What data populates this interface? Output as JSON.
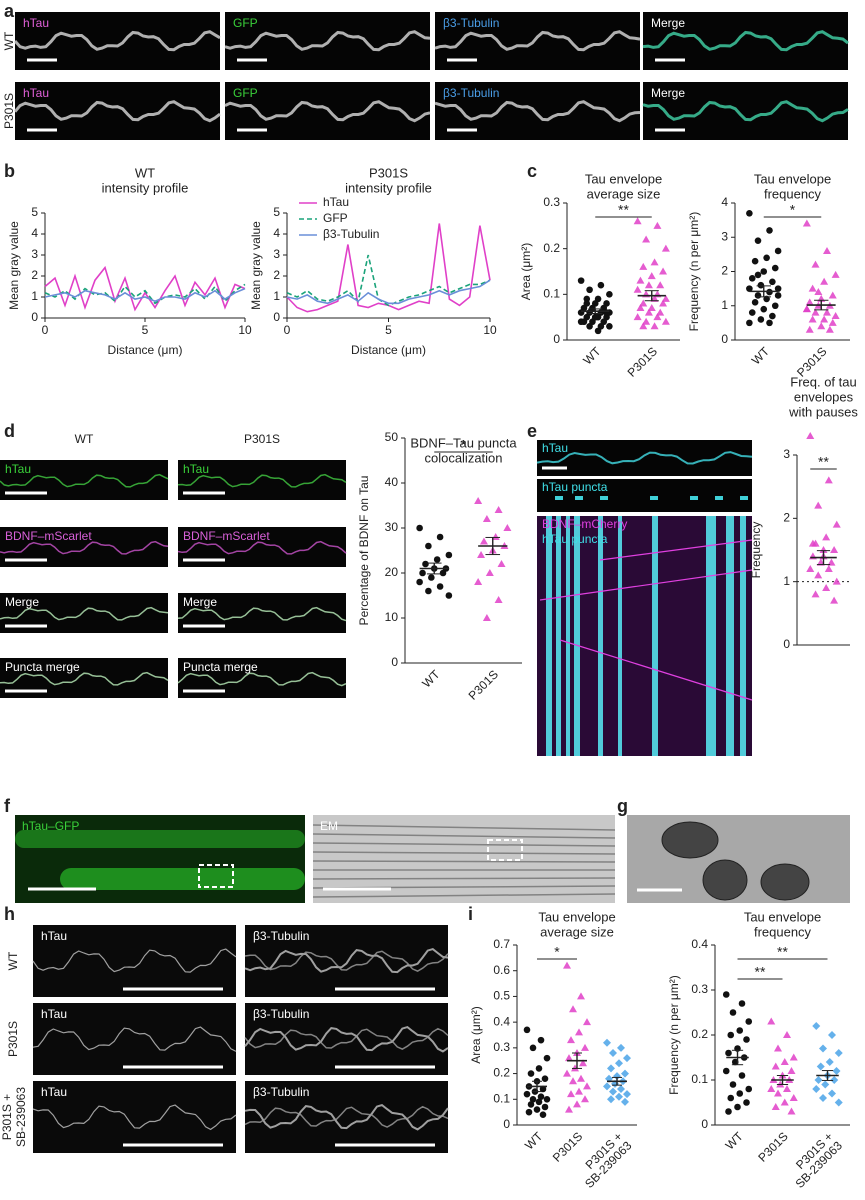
{
  "panel_letters": [
    "a",
    "b",
    "c",
    "d",
    "e",
    "f",
    "g",
    "h",
    "i"
  ],
  "panel_a": {
    "rows": [
      {
        "label": "WT",
        "channels": [
          {
            "label": "hTau",
            "color": "#e060d8"
          },
          {
            "label": "GFP",
            "color": "#3ad13a"
          },
          {
            "label": "β3-Tubulin",
            "color": "#4a9ee8"
          },
          {
            "label": "Merge",
            "color": "#ffffff"
          }
        ]
      },
      {
        "label": "P301S",
        "channels": [
          {
            "label": "hTau",
            "color": "#e060d8"
          },
          {
            "label": "GFP",
            "color": "#3ad13a"
          },
          {
            "label": "β3-Tubulin",
            "color": "#4a9ee8"
          },
          {
            "label": "Merge",
            "color": "#ffffff"
          }
        ]
      }
    ]
  },
  "panel_d": {
    "columns": [
      "WT",
      "P301S"
    ],
    "rows": [
      {
        "label": "hTau",
        "color": "#3ad13a"
      },
      {
        "label": "BDNF–mScarlet",
        "color": "#d860d8"
      },
      {
        "label": "Merge",
        "color": "#ffffff"
      },
      {
        "label": "Puncta merge",
        "color": "#ffffff"
      }
    ]
  },
  "panel_e": {
    "labels": [
      {
        "label": "hTau",
        "color": "#40e0e8"
      },
      {
        "label": "hTau puncta",
        "color": "#40e0e8"
      },
      {
        "label": "BDNF–mCherry",
        "color": "#e040e0"
      },
      {
        "label": "hTau puncta",
        "color": "#40e0e8"
      }
    ]
  },
  "panel_f": {
    "labels": [
      {
        "label": "hTau–GFP",
        "color": "#3ad13a"
      },
      {
        "label": "EM",
        "color": "#ffffff"
      }
    ]
  },
  "panel_h": {
    "rows": [
      [
        "WT"
      ],
      [
        "P301S"
      ],
      [
        "P301S +",
        "SB-239063"
      ]
    ],
    "channels": [
      "hTau",
      "β3-Tubulin"
    ]
  },
  "chart_data": [
    {
      "type": "line",
      "title": [
        "WT",
        "intensity profile"
      ],
      "x_label": "Distance (μm)",
      "y_label": "Mean gray value",
      "x": [
        0,
        0.5,
        1,
        1.5,
        2,
        2.5,
        3,
        3.5,
        4,
        4.5,
        5,
        5.5,
        6,
        6.5,
        7,
        7.5,
        8,
        8.5,
        9,
        9.5,
        10
      ],
      "xlim": [
        0,
        10
      ],
      "xticks": [
        0,
        5,
        10
      ],
      "ylim": [
        0,
        5
      ],
      "yticks": [
        0,
        1,
        2,
        3,
        4,
        5
      ],
      "legend": false,
      "series": [
        {
          "color": "#e040c8",
          "dash": false,
          "values": [
            1.5,
            1.9,
            0.6,
            2.0,
            0.5,
            1.8,
            2.4,
            0.8,
            1.9,
            0.4,
            1.2,
            0.5,
            1.3,
            2.0,
            0.6,
            1.7,
            1.1,
            1.9,
            0.5,
            1.6,
            1.4
          ]
        },
        {
          "color": "#1aa37a",
          "dash": true,
          "values": [
            1.2,
            1.0,
            1.3,
            0.9,
            1.4,
            1.1,
            1.2,
            0.8,
            1.5,
            1.0,
            1.3,
            0.7,
            1.0,
            1.1,
            1.0,
            1.4,
            0.9,
            1.5,
            0.8,
            1.3,
            1.6
          ]
        },
        {
          "color": "#6a8fd8",
          "dash": false,
          "values": [
            1.0,
            1.1,
            1.2,
            1.0,
            1.3,
            1.2,
            1.1,
            0.9,
            1.2,
            0.9,
            1.0,
            0.8,
            1.0,
            1.0,
            0.9,
            1.2,
            1.0,
            1.3,
            0.9,
            1.2,
            1.4
          ]
        }
      ]
    },
    {
      "type": "line",
      "title": [
        "P301S",
        "intensity profile"
      ],
      "x_label": "Distance (μm)",
      "y_label": "Mean gray value",
      "x": [
        0,
        0.5,
        1,
        1.5,
        2,
        2.5,
        3,
        3.5,
        4,
        4.5,
        5,
        5.5,
        6,
        6.5,
        7,
        7.5,
        8,
        8.5,
        9,
        9.5,
        10
      ],
      "xlim": [
        0,
        10
      ],
      "xticks": [
        0,
        5,
        10
      ],
      "ylim": [
        0,
        5
      ],
      "yticks": [
        0,
        1,
        2,
        3,
        4,
        5
      ],
      "legend": "upper left",
      "series": [
        {
          "name": "hTau",
          "color": "#e040c8",
          "dash": false,
          "values": [
            1.0,
            0.5,
            0.3,
            0.4,
            0.6,
            0.8,
            3.5,
            0.6,
            0.5,
            0.7,
            0.6,
            0.4,
            0.6,
            0.8,
            0.7,
            4.5,
            0.9,
            0.6,
            1.0,
            4.4,
            1.8
          ]
        },
        {
          "name": "GFP",
          "color": "#1aa37a",
          "dash": true,
          "values": [
            1.2,
            1.0,
            1.3,
            0.9,
            0.8,
            1.0,
            1.3,
            0.8,
            3.0,
            0.9,
            0.6,
            0.8,
            1.0,
            1.1,
            1.3,
            1.5,
            1.2,
            1.4,
            1.6,
            1.6,
            1.8
          ]
        },
        {
          "name": "β3-Tubulin",
          "color": "#6a8fd8",
          "dash": false,
          "values": [
            1.0,
            0.9,
            1.1,
            0.8,
            0.7,
            0.9,
            1.1,
            0.8,
            1.2,
            0.9,
            0.7,
            0.7,
            0.9,
            1.0,
            1.1,
            1.3,
            1.1,
            1.3,
            1.4,
            1.5,
            1.8
          ]
        }
      ]
    },
    {
      "type": "dot",
      "title": [
        "Tau envelope",
        "average size"
      ],
      "y_label": "Area (μm²)",
      "ylim": [
        0,
        0.3
      ],
      "yticks": [
        0,
        0.1,
        0.2,
        0.3
      ],
      "groups": [
        {
          "label": [
            "WT"
          ],
          "color": "#111111",
          "marker": "circle",
          "mean": 0.063,
          "sem": 0.005,
          "values": [
            0.13,
            0.12,
            0.11,
            0.1,
            0.09,
            0.09,
            0.08,
            0.08,
            0.07,
            0.07,
            0.07,
            0.06,
            0.06,
            0.06,
            0.06,
            0.05,
            0.05,
            0.05,
            0.05,
            0.04,
            0.04,
            0.04,
            0.04,
            0.03,
            0.03,
            0.03,
            0.02,
            0.08,
            0.06,
            0.05
          ]
        },
        {
          "label": [
            "P301S"
          ],
          "color": "#e040c8",
          "marker": "triangle",
          "mean": 0.097,
          "sem": 0.011,
          "significance": "**",
          "values": [
            0.26,
            0.25,
            0.22,
            0.2,
            0.17,
            0.16,
            0.15,
            0.14,
            0.13,
            0.12,
            0.12,
            0.11,
            0.1,
            0.1,
            0.09,
            0.09,
            0.08,
            0.08,
            0.07,
            0.07,
            0.06,
            0.06,
            0.05,
            0.05,
            0.04,
            0.04,
            0.03,
            0.03
          ]
        }
      ]
    },
    {
      "type": "dot",
      "title": [
        "Tau envelope",
        "frequency"
      ],
      "y_label": "Frequency (n per μm²)",
      "ylim": [
        0,
        4
      ],
      "yticks": [
        0,
        1,
        2,
        3,
        4
      ],
      "groups": [
        {
          "label": [
            "WT"
          ],
          "color": "#111111",
          "marker": "circle",
          "mean": 1.42,
          "sem": 0.16,
          "values": [
            3.7,
            3.2,
            2.9,
            2.6,
            2.4,
            2.3,
            2.1,
            2.0,
            1.8,
            1.7,
            1.6,
            1.5,
            1.4,
            1.3,
            1.3,
            1.2,
            1.1,
            1.0,
            0.9,
            0.8,
            0.7,
            0.6,
            0.5,
            0.5,
            1.9,
            1.5
          ]
        },
        {
          "label": [
            "P301S"
          ],
          "color": "#e040c8",
          "marker": "triangle",
          "mean": 1.02,
          "sem": 0.14,
          "significance": "*",
          "values": [
            3.4,
            2.6,
            2.2,
            1.9,
            1.7,
            1.5,
            1.3,
            1.2,
            1.1,
            1.0,
            1.0,
            0.9,
            0.8,
            0.8,
            0.7,
            0.6,
            0.6,
            0.5,
            0.4,
            0.3,
            0.3,
            1.4,
            0.9
          ]
        }
      ]
    },
    {
      "type": "dot",
      "title": [
        "BDNF–Tau puncta",
        "colocalization"
      ],
      "y_label": "Percentage of BDNF on Tau",
      "ylim": [
        0,
        50
      ],
      "yticks": [
        0,
        10,
        20,
        30,
        40,
        50
      ],
      "groups": [
        {
          "label": [
            "WT"
          ],
          "color": "#111111",
          "marker": "circle",
          "mean": 21,
          "sem": 1.2,
          "values": [
            30,
            28,
            26,
            24,
            23,
            22,
            21,
            21,
            20,
            20,
            19,
            18,
            17,
            16,
            15
          ]
        },
        {
          "label": [
            "P301S"
          ],
          "color": "#e040c8",
          "marker": "triangle",
          "mean": 26,
          "sem": 1.9,
          "significance": "*",
          "values": [
            36,
            34,
            32,
            30,
            28,
            27,
            26,
            25,
            24,
            22,
            20,
            18,
            14,
            10
          ]
        }
      ]
    },
    {
      "type": "dot",
      "title": [
        "Freq. of tau",
        "envelopes",
        "with pauses"
      ],
      "y_label": "Frequency",
      "ylim": [
        0,
        3
      ],
      "yticks": [
        0,
        1,
        2,
        3
      ],
      "reference_line": 1,
      "groups": [
        {
          "color": "#e040c8",
          "marker": "triangle",
          "mean": 1.38,
          "sem": 0.11,
          "significance": "**",
          "values": [
            3.3,
            2.6,
            2.2,
            1.9,
            1.7,
            1.6,
            1.5,
            1.4,
            1.4,
            1.3,
            1.3,
            1.2,
            1.2,
            1.1,
            1.0,
            0.9,
            0.8,
            0.7,
            1.5,
            1.6
          ]
        }
      ]
    },
    {
      "type": "dot",
      "title": [
        "Tau envelope",
        "average size"
      ],
      "y_label": "Area (μm²)",
      "ylim": [
        0,
        0.7
      ],
      "yticks": [
        0,
        0.1,
        0.2,
        0.3,
        0.4,
        0.5,
        0.6,
        0.7
      ],
      "groups": [
        {
          "label": [
            "WT"
          ],
          "color": "#111111",
          "marker": "circle",
          "mean": 0.15,
          "sem": 0.02,
          "values": [
            0.37,
            0.33,
            0.3,
            0.26,
            0.22,
            0.2,
            0.18,
            0.17,
            0.15,
            0.14,
            0.13,
            0.12,
            0.11,
            0.1,
            0.1,
            0.09,
            0.08,
            0.07,
            0.06,
            0.05,
            0.04
          ]
        },
        {
          "label": [
            "P301S"
          ],
          "color": "#e040c8",
          "marker": "triangle",
          "mean": 0.25,
          "sem": 0.03,
          "significance": "*",
          "values": [
            0.62,
            0.5,
            0.45,
            0.4,
            0.36,
            0.33,
            0.3,
            0.28,
            0.26,
            0.24,
            0.22,
            0.2,
            0.18,
            0.17,
            0.15,
            0.13,
            0.12,
            0.1,
            0.08,
            0.06
          ]
        },
        {
          "label": [
            "P301S +",
            "SB-239063"
          ],
          "color": "#4aa3e8",
          "marker": "diamond",
          "mean": 0.17,
          "sem": 0.015,
          "values": [
            0.32,
            0.3,
            0.28,
            0.26,
            0.24,
            0.22,
            0.2,
            0.19,
            0.18,
            0.17,
            0.16,
            0.15,
            0.14,
            0.13,
            0.12,
            0.11,
            0.1,
            0.09
          ]
        }
      ]
    },
    {
      "type": "dot",
      "title": [
        "Tau envelope",
        "frequency"
      ],
      "y_label": "Frequency (n per μm²)",
      "ylim": [
        0,
        0.4
      ],
      "yticks": [
        0,
        0.1,
        0.2,
        0.3,
        0.4
      ],
      "groups": [
        {
          "label": [
            "WT"
          ],
          "color": "#111111",
          "marker": "circle",
          "mean": 0.15,
          "sem": 0.016,
          "values": [
            0.29,
            0.27,
            0.25,
            0.23,
            0.21,
            0.2,
            0.19,
            0.17,
            0.16,
            0.15,
            0.14,
            0.12,
            0.11,
            0.09,
            0.08,
            0.07,
            0.06,
            0.05,
            0.04,
            0.03
          ]
        },
        {
          "label": [
            "P301S"
          ],
          "color": "#e040c8",
          "marker": "triangle",
          "mean": 0.1,
          "sem": 0.01,
          "significance": "**",
          "values": [
            0.23,
            0.2,
            0.17,
            0.15,
            0.14,
            0.13,
            0.12,
            0.11,
            0.1,
            0.1,
            0.09,
            0.08,
            0.08,
            0.07,
            0.06,
            0.05,
            0.04,
            0.03
          ]
        },
        {
          "label": [
            "P301S +",
            "SB-239063"
          ],
          "color": "#4aa3e8",
          "marker": "diamond",
          "mean": 0.11,
          "sem": 0.011,
          "significance": "**",
          "values": [
            0.22,
            0.2,
            0.17,
            0.16,
            0.14,
            0.13,
            0.12,
            0.11,
            0.1,
            0.1,
            0.09,
            0.08,
            0.07,
            0.06,
            0.05
          ]
        }
      ]
    }
  ]
}
